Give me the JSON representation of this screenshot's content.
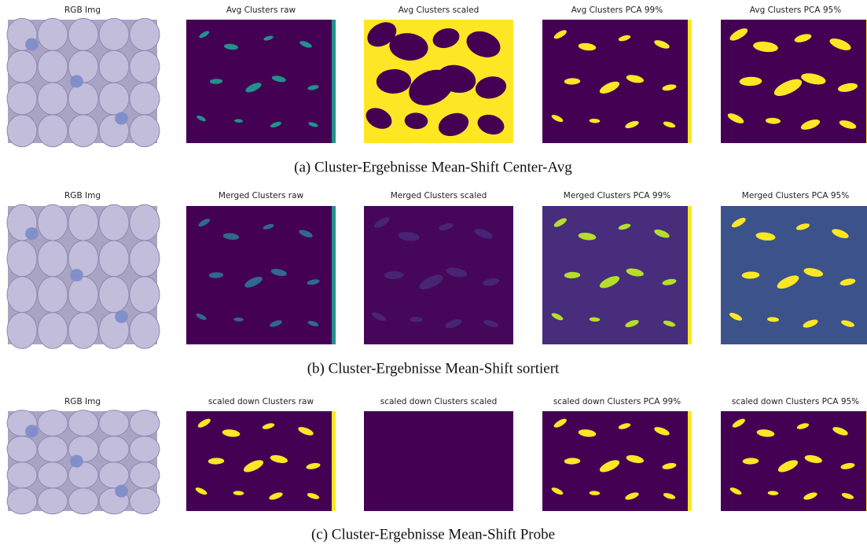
{
  "rows": [
    {
      "titles": [
        "RGB Img",
        "Avg Clusters raw",
        "Avg Clusters scaled",
        "Avg Clusters PCA 99%",
        "Avg Clusters PCA 95%"
      ],
      "caption": "(a) Cluster-Ergebnisse Mean-Shift Center-Avg"
    },
    {
      "titles": [
        "RGB Img",
        "Merged Clusters raw",
        "Merged Clusters scaled",
        "Merged Clusters PCA 99%",
        "Merged Clusters PCA 95%"
      ],
      "caption": "(b) Cluster-Ergebnisse Mean-Shift sortiert"
    },
    {
      "titles": [
        "RGB Img",
        "scaled down Clusters raw",
        "scaled down Clusters scaled",
        "scaled down Clusters PCA 99%",
        "scaled down Clusters PCA 95%"
      ],
      "caption": "(c) Cluster-Ergebnisse Mean-Shift Probe"
    }
  ]
}
